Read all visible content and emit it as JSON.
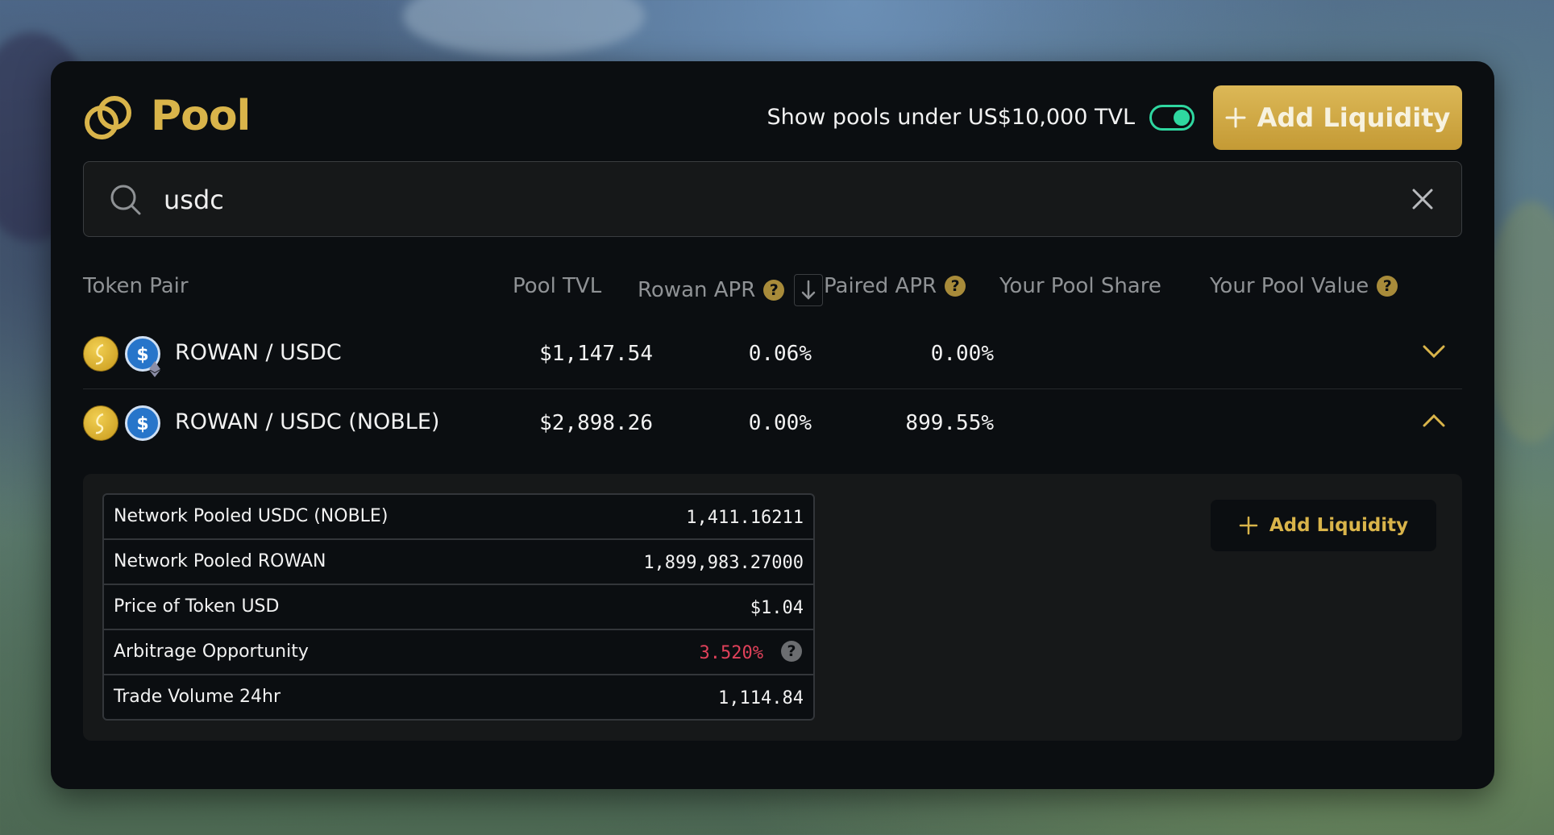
{
  "header": {
    "title": "Pool",
    "toggle_label": "Show pools under US$10,000 TVL",
    "toggle_on": true,
    "add_liquidity_label": "Add Liquidity"
  },
  "search": {
    "value": "usdc"
  },
  "columns": {
    "token_pair": "Token Pair",
    "pool_tvl": "Pool TVL",
    "rowan_apr": "Rowan APR",
    "paired_apr": "Paired APR",
    "your_pool_share": "Your Pool Share",
    "your_pool_value": "Your Pool Value"
  },
  "rows": [
    {
      "pair": "ROWAN / USDC",
      "tvl": "$1,147.54",
      "rowan_apr": "0.06%",
      "paired_apr": "0.00%",
      "expanded": false
    },
    {
      "pair": "ROWAN / USDC (NOBLE)",
      "tvl": "$2,898.26",
      "rowan_apr": "0.00%",
      "paired_apr": "899.55%",
      "expanded": true
    }
  ],
  "details": {
    "items": [
      {
        "label": "Network Pooled USDC (NOBLE)",
        "value": "1,411.16211"
      },
      {
        "label": "Network Pooled ROWAN",
        "value": "1,899,983.27000"
      },
      {
        "label": "Price of Token USD",
        "value": "$1.04"
      },
      {
        "label": "Arbitrage Opportunity",
        "value": "3.520%"
      },
      {
        "label": "Trade Volume 24hr",
        "value": "1,114.84"
      }
    ],
    "add_liquidity_label": "Add Liquidity"
  },
  "colors": {
    "accent_gold": "#d9b44a",
    "toggle_green": "#2fd7a0",
    "arbitrage_red": "#e0415a",
    "card_bg": "#0b0e11"
  }
}
